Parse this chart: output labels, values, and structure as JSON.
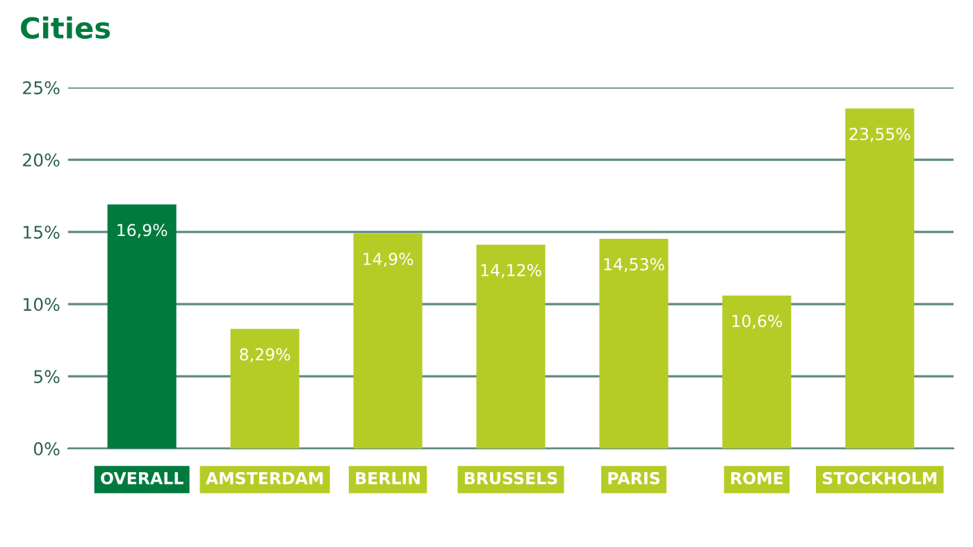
{
  "chart_data": {
    "type": "bar",
    "title": "Cities",
    "categories": [
      "OVERALL",
      "AMSTERDAM",
      "BERLIN",
      "BRUSSELS",
      "PARIS",
      "ROME",
      "STOCKHOLM"
    ],
    "values": [
      16.9,
      8.29,
      14.9,
      14.12,
      14.53,
      10.6,
      23.55
    ],
    "value_labels": [
      "16,9%",
      "8,29%",
      "14,9%",
      "14,12%",
      "14,53%",
      "10,6%",
      "23,55%"
    ],
    "colors": [
      "#007a3d",
      "#b5cc26",
      "#b5cc26",
      "#b5cc26",
      "#b5cc26",
      "#b5cc26",
      "#b5cc26"
    ],
    "ylim": [
      0,
      25
    ],
    "yticks": [
      {
        "value": 0,
        "label": "0%"
      },
      {
        "value": 5,
        "label": "5%"
      },
      {
        "value": 10,
        "label": "10%"
      },
      {
        "value": 15,
        "label": "15%"
      },
      {
        "value": 20,
        "label": "20%"
      },
      {
        "value": 25,
        "label": "25%"
      }
    ],
    "grid": "y"
  }
}
